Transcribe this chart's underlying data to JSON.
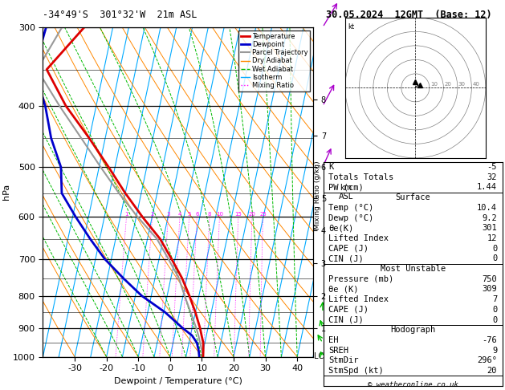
{
  "title_left": "-34°49'S  301°32'W  21m ASL",
  "title_right": "30.05.2024  12GMT  (Base: 12)",
  "xlabel": "Dewpoint / Temperature (°C)",
  "ylabel_left": "hPa",
  "temp_range": [
    -40,
    45
  ],
  "temp_ticks": [
    -30,
    -20,
    -10,
    0,
    10,
    20,
    30,
    40
  ],
  "isotherm_temps": [
    -40,
    -35,
    -30,
    -25,
    -20,
    -15,
    -10,
    -5,
    0,
    5,
    10,
    15,
    20,
    25,
    30,
    35,
    40,
    45
  ],
  "skew_factor": 22,
  "background": "#ffffff",
  "isotherm_color": "#00aaff",
  "dry_adiabat_color": "#ff8800",
  "wet_adiabat_color": "#00bb00",
  "mixing_ratio_color": "#ff00ff",
  "temp_color": "#dd0000",
  "dewp_color": "#0000cc",
  "parcel_color": "#999999",
  "legend_items": [
    {
      "label": "Temperature",
      "color": "#dd0000",
      "lw": 2.0,
      "ls": "-"
    },
    {
      "label": "Dewpoint",
      "color": "#0000cc",
      "lw": 2.0,
      "ls": "-"
    },
    {
      "label": "Parcel Trajectory",
      "color": "#999999",
      "lw": 1.5,
      "ls": "-"
    },
    {
      "label": "Dry Adiabat",
      "color": "#ff8800",
      "lw": 1.0,
      "ls": "-"
    },
    {
      "label": "Wet Adiabat",
      "color": "#00bb00",
      "lw": 1.0,
      "ls": "--"
    },
    {
      "label": "Isotherm",
      "color": "#00aaff",
      "lw": 1.0,
      "ls": "-"
    },
    {
      "label": "Mixing Ratio",
      "color": "#ff00ff",
      "lw": 1.0,
      "ls": ":"
    }
  ],
  "temp_profile": {
    "pressure": [
      1000,
      975,
      950,
      925,
      900,
      850,
      800,
      750,
      700,
      650,
      600,
      550,
      500,
      450,
      400,
      350,
      300
    ],
    "temp": [
      10.4,
      10.0,
      9.5,
      8.5,
      7.5,
      5.0,
      2.0,
      -1.5,
      -6.0,
      -11.0,
      -18.0,
      -25.0,
      -32.0,
      -40.0,
      -49.5,
      -58.0,
      -49.0
    ]
  },
  "dewp_profile": {
    "pressure": [
      1000,
      975,
      950,
      925,
      900,
      850,
      800,
      750,
      700,
      650,
      600,
      550,
      500,
      450,
      400,
      350,
      300
    ],
    "temp": [
      9.2,
      8.5,
      7.5,
      5.5,
      2.0,
      -4.5,
      -13.0,
      -20.0,
      -27.0,
      -33.0,
      -39.0,
      -45.0,
      -47.0,
      -52.0,
      -56.0,
      -62.0,
      -61.0
    ]
  },
  "parcel_profile": {
    "pressure": [
      1000,
      975,
      950,
      925,
      900,
      850,
      800,
      750,
      700,
      650,
      600,
      550,
      500,
      450,
      400,
      350,
      300
    ],
    "temp": [
      10.4,
      9.5,
      8.5,
      7.5,
      6.3,
      3.5,
      0.5,
      -2.5,
      -7.0,
      -12.0,
      -19.5,
      -27.0,
      -34.5,
      -42.5,
      -51.5,
      -61.0,
      -56.0
    ]
  },
  "mixing_ratio_vals": [
    1,
    2,
    3,
    4,
    5,
    6,
    8,
    10,
    15,
    20,
    25
  ],
  "km_ticks": [
    1,
    2,
    3,
    4,
    5,
    6,
    7,
    8
  ],
  "km_pressures": [
    900,
    800,
    710,
    630,
    560,
    500,
    445,
    390
  ],
  "lcl_pressure": 998,
  "wind_barbs": [
    {
      "pressure": 1000,
      "u": -1,
      "v": 3,
      "color": "#00bb00"
    },
    {
      "pressure": 950,
      "u": -2,
      "v": 4,
      "color": "#00bb00"
    },
    {
      "pressure": 900,
      "u": -1,
      "v": 4,
      "color": "#00bb00"
    },
    {
      "pressure": 850,
      "u": 0,
      "v": 5,
      "color": "#00bb00"
    },
    {
      "pressure": 500,
      "u": 3,
      "v": 8,
      "color": "#aa00cc"
    },
    {
      "pressure": 400,
      "u": 4,
      "v": 9,
      "color": "#aa00cc"
    },
    {
      "pressure": 300,
      "u": 5,
      "v": 10,
      "color": "#aa00cc"
    }
  ],
  "stats_rows": [
    {
      "type": "data",
      "label": "K",
      "value": "-5"
    },
    {
      "type": "data",
      "label": "Totals Totals",
      "value": "32"
    },
    {
      "type": "data",
      "label": "PW (cm)",
      "value": "1.44"
    },
    {
      "type": "header",
      "label": "Surface"
    },
    {
      "type": "data",
      "label": "Temp (°C)",
      "value": "10.4"
    },
    {
      "type": "data",
      "label": "Dewp (°C)",
      "value": "9.2"
    },
    {
      "type": "data",
      "label": "θe(K)",
      "value": "301"
    },
    {
      "type": "data",
      "label": "Lifted Index",
      "value": "12"
    },
    {
      "type": "data",
      "label": "CAPE (J)",
      "value": "0"
    },
    {
      "type": "data",
      "label": "CIN (J)",
      "value": "0"
    },
    {
      "type": "header",
      "label": "Most Unstable"
    },
    {
      "type": "data",
      "label": "Pressure (mb)",
      "value": "750"
    },
    {
      "type": "data",
      "label": "θe (K)",
      "value": "309"
    },
    {
      "type": "data",
      "label": "Lifted Index",
      "value": "7"
    },
    {
      "type": "data",
      "label": "CAPE (J)",
      "value": "0"
    },
    {
      "type": "data",
      "label": "CIN (J)",
      "value": "0"
    },
    {
      "type": "header",
      "label": "Hodograph"
    },
    {
      "type": "data",
      "label": "EH",
      "value": "-76"
    },
    {
      "type": "data",
      "label": "SREH",
      "value": "9"
    },
    {
      "type": "data",
      "label": "StmDir",
      "value": "296°"
    },
    {
      "type": "data",
      "label": "StmSpd (kt)",
      "value": "20"
    }
  ]
}
